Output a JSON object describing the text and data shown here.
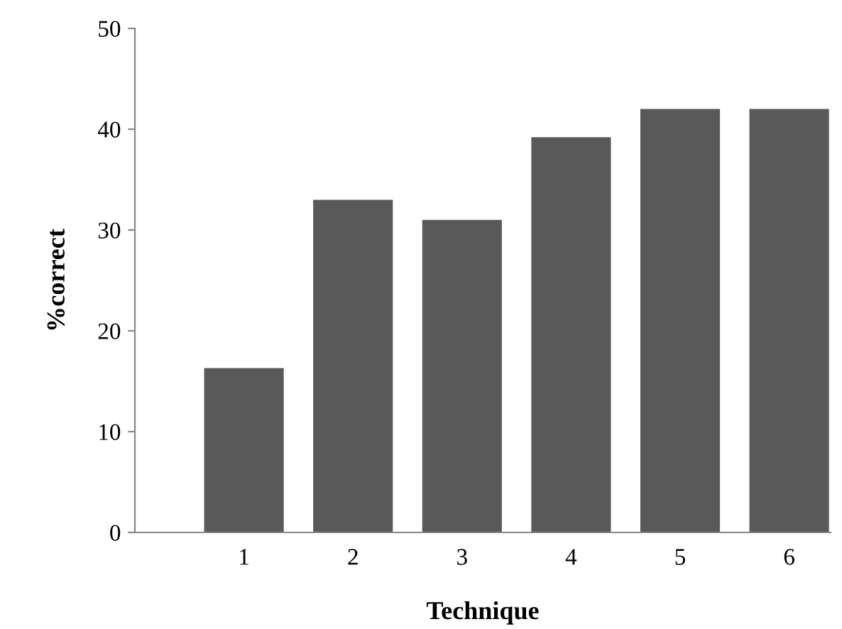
{
  "chart_data": {
    "type": "bar",
    "xlabel": "Technique",
    "ylabel": "%correct",
    "categories": [
      "1",
      "2",
      "3",
      "4",
      "5",
      "6"
    ],
    "values": [
      16.3,
      33,
      31,
      39.2,
      42,
      42
    ],
    "color": "#595959",
    "ylim": [
      0,
      50
    ],
    "yticks": [
      0,
      10,
      20,
      30,
      40,
      50
    ],
    "grid": false,
    "legend": false
  }
}
